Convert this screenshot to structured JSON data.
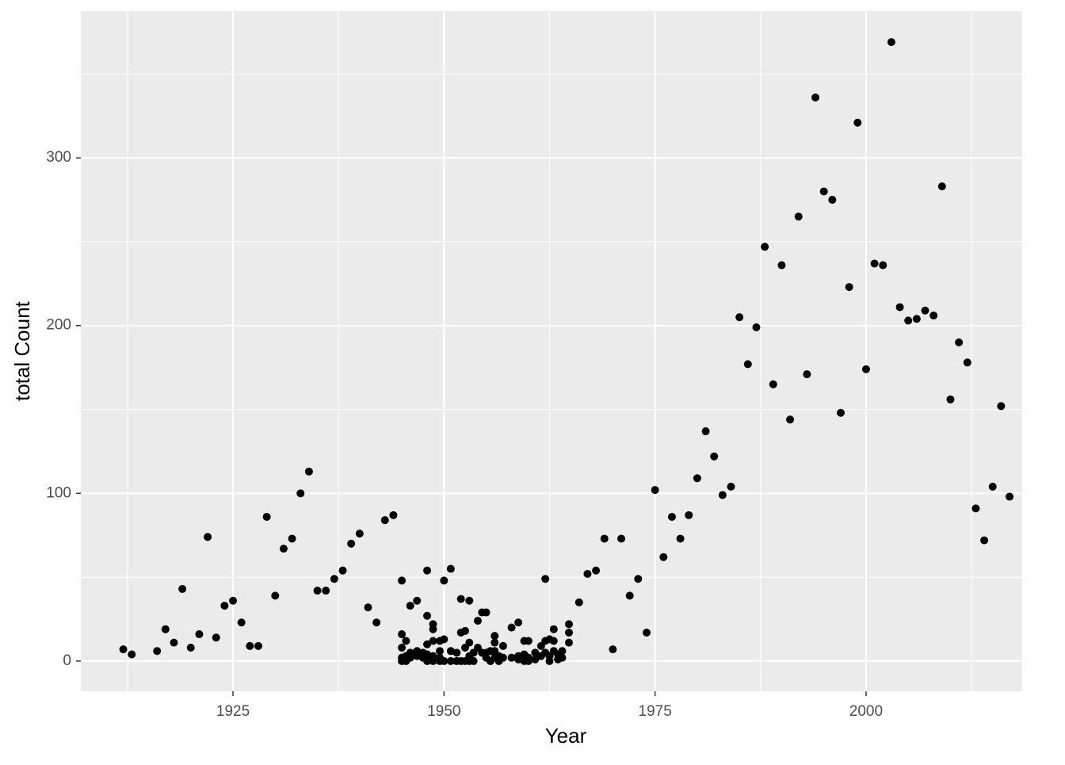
{
  "chart_data": {
    "type": "scatter",
    "x_label": "Year",
    "y_label": "total Count",
    "color": "#000000",
    "background": "#ebebeb",
    "grid": true,
    "xlim": [
      1906.97,
      2018.5
    ],
    "ylim": [
      -18,
      387.5
    ],
    "xticks": [
      1925,
      1950,
      1975,
      2000
    ],
    "yticks": [
      0,
      100,
      200,
      300
    ],
    "x": [
      1912,
      1913,
      1916,
      1917,
      1918,
      1919,
      1920,
      1921,
      1922,
      1923,
      1924,
      1925,
      1926,
      1927,
      1928,
      1929,
      1930,
      1931,
      1932,
      1933,
      1934,
      1935,
      1936,
      1937,
      1938,
      1939,
      1940,
      1941,
      1942,
      1943,
      1944,
      1945,
      1945,
      1945,
      1945,
      1945,
      1945.5,
      1945.5,
      1945.5,
      1946,
      1946,
      1946,
      1946.8,
      1946.8,
      1946.8,
      1947.5,
      1947.5,
      1948,
      1948,
      1948,
      1948,
      1948,
      1948,
      1948.7,
      1948.7,
      1948.7,
      1948.7,
      1948.7,
      1949.5,
      1949.5,
      1949.5,
      1949.5,
      1950,
      1950,
      1950,
      1950.8,
      1950.8,
      1950.8,
      1951.5,
      1951.5,
      1952,
      1952,
      1952,
      1952.5,
      1952.5,
      1952.5,
      1953,
      1953,
      1953,
      1953,
      1953.5,
      1953.5,
      1954,
      1954,
      1954.5,
      1954.5,
      1955,
      1955,
      1955,
      1955.5,
      1955.5,
      1956,
      1956,
      1956,
      1956,
      1956.5,
      1956.5,
      1957,
      1957,
      1958,
      1958,
      1958.8,
      1958.8,
      1958.8,
      1959.5,
      1959.5,
      1959.5,
      1960,
      1960,
      1960,
      1960.8,
      1960.8,
      1961.5,
      1961.5,
      1962,
      1962,
      1962,
      1962.5,
      1962.5,
      1962.5,
      1963,
      1963,
      1963,
      1963.5,
      1963.5,
      1964,
      1964,
      1964.8,
      1964.8,
      1964.8,
      1966,
      1967,
      1968,
      1969,
      1970,
      1971,
      1972,
      1973,
      1974,
      1975,
      1976,
      1977,
      1978,
      1979,
      1980,
      1981,
      1982,
      1983,
      1984,
      1985,
      1986,
      1987,
      1988,
      1989,
      1990,
      1991,
      1992,
      1993,
      1994,
      1995,
      1996,
      1997,
      1998,
      1999,
      2000,
      2001,
      2002,
      2003,
      2004,
      2005,
      2006,
      2007,
      2008,
      2009,
      2010,
      2011,
      2012,
      2013,
      2014,
      2015,
      2016,
      2017
    ],
    "values": [
      7,
      4,
      6,
      19,
      11,
      43,
      8,
      16,
      74,
      14,
      33,
      36,
      23,
      9,
      9,
      86,
      39,
      67,
      73,
      100,
      113,
      42,
      42,
      49,
      54,
      70,
      76,
      32,
      23,
      84,
      87,
      48,
      16,
      8,
      2,
      0,
      12,
      3,
      0,
      33,
      5,
      2,
      36,
      6,
      3,
      2,
      5,
      54,
      27,
      10,
      4,
      1,
      0,
      22,
      19,
      12,
      3,
      0,
      12,
      6,
      2,
      0,
      48,
      13,
      0,
      55,
      6,
      0,
      5,
      0,
      37,
      17,
      0,
      18,
      8,
      0,
      36,
      11,
      3,
      0,
      5,
      0,
      24,
      8,
      29,
      5,
      29,
      5,
      2,
      6,
      0,
      15,
      11,
      6,
      2,
      3,
      0,
      9,
      2,
      20,
      2,
      23,
      3,
      1,
      12,
      4,
      0,
      12,
      2,
      0,
      5,
      1,
      9,
      3,
      49,
      12,
      5,
      13,
      3,
      0,
      19,
      12,
      6,
      4,
      1,
      6,
      2,
      22,
      17,
      11,
      35,
      52,
      54,
      73,
      7,
      73,
      39,
      49,
      17,
      102,
      62,
      86,
      73,
      87,
      109,
      137,
      122,
      99,
      104,
      205,
      177,
      199,
      247,
      165,
      236,
      144,
      265,
      171,
      336,
      280,
      275,
      148,
      223,
      321,
      174,
      237,
      236,
      369,
      211,
      203,
      204,
      209,
      206,
      283,
      156,
      190,
      178,
      91,
      72,
      104,
      152,
      98
    ]
  }
}
